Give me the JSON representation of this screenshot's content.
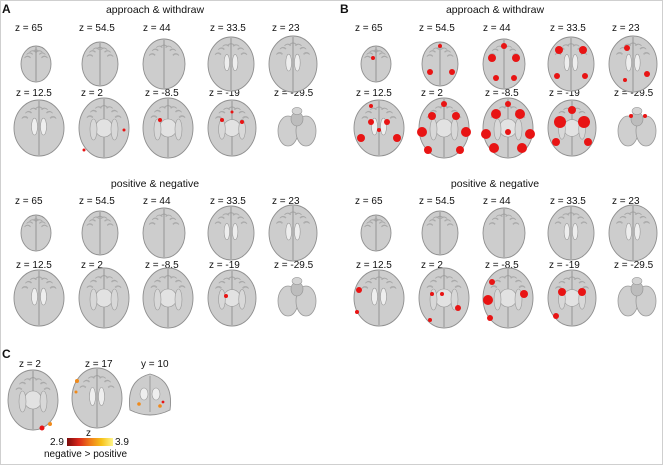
{
  "panels": {
    "A": {
      "letter": "A",
      "title_top": "approach & withdraw",
      "title_bottom": "positive & negative",
      "row1_slices": [
        "z = 65",
        "z = 54.5",
        "z = 44",
        "z = 33.5",
        "z = 23"
      ],
      "row2_slices": [
        "z = 12.5",
        "z = 2",
        "z = -8.5",
        "z = -19",
        "z = -29.5"
      ]
    },
    "B": {
      "letter": "B",
      "title_top": "approach & withdraw",
      "title_bottom": "positive & negative",
      "row1_slices": [
        "z = 65",
        "z = 54.5",
        "z = 44",
        "z = 33.5",
        "z = 23"
      ],
      "row2_slices": [
        "z = 12.5",
        "z = 2",
        "z = -8.5",
        "z = -19",
        "z = -29.5"
      ]
    },
    "C": {
      "letter": "C",
      "slices": [
        "z = 2",
        "z = 17",
        "y = 10"
      ],
      "colorbar": {
        "label": "z",
        "min": "2.9",
        "max": "3.9",
        "caption": "negative > positive"
      }
    }
  },
  "colors": {
    "activation_red": "#e81414",
    "activation_orange": "#f08a1a",
    "brain_gray": "#c9c9c9"
  }
}
